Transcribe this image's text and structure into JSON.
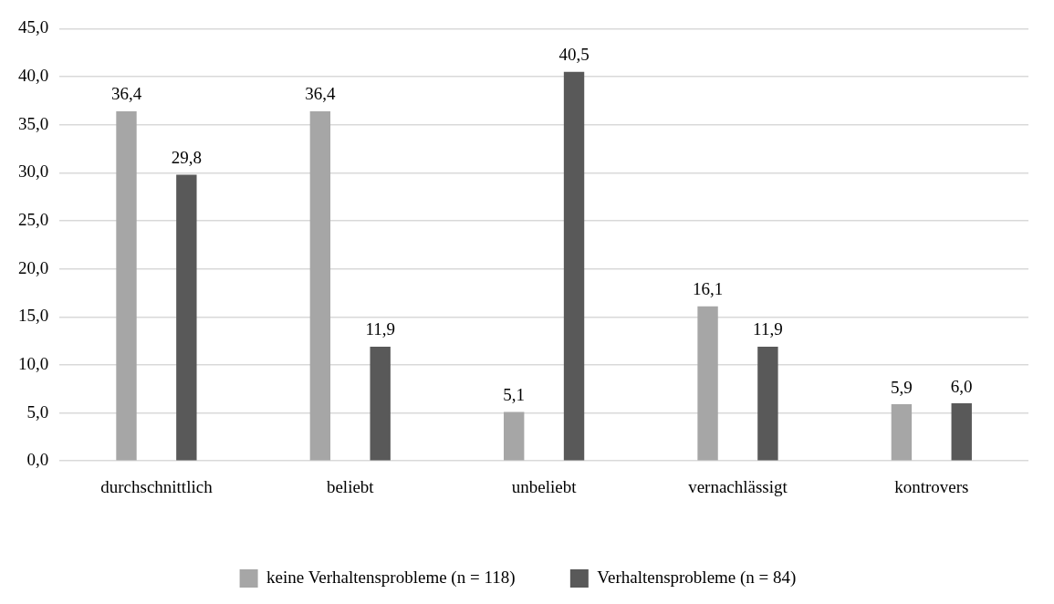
{
  "chart_data": {
    "type": "bar",
    "categories": [
      "durchschnittlich",
      "beliebt",
      "unbeliebt",
      "vernachlässigt",
      "kontrovers"
    ],
    "series": [
      {
        "name": "keine Verhaltensprobleme (n = 118)",
        "color": "#a6a6a6",
        "values": [
          36.4,
          36.4,
          5.1,
          16.1,
          5.9
        ],
        "value_labels": [
          "36,4",
          "36,4",
          "5,1",
          "16,1",
          "5,9"
        ]
      },
      {
        "name": "Verhaltensprobleme (n = 84)",
        "color": "#595959",
        "values": [
          29.8,
          11.9,
          40.5,
          11.9,
          6.0
        ],
        "value_labels": [
          "29,8",
          "11,9",
          "40,5",
          "11,9",
          "6,0"
        ]
      }
    ],
    "ylim": [
      0,
      45
    ],
    "yticks": [
      {
        "value": 0,
        "label": "0,0"
      },
      {
        "value": 5,
        "label": "5,0"
      },
      {
        "value": 10,
        "label": "10,0"
      },
      {
        "value": 15,
        "label": "15,0"
      },
      {
        "value": 20,
        "label": "20,0"
      },
      {
        "value": 25,
        "label": "25,0"
      },
      {
        "value": 30,
        "label": "30,0"
      },
      {
        "value": 35,
        "label": "35,0"
      },
      {
        "value": 40,
        "label": "40,0"
      },
      {
        "value": 45,
        "label": "45,0"
      }
    ],
    "grid": "y",
    "legend": "bottom"
  }
}
